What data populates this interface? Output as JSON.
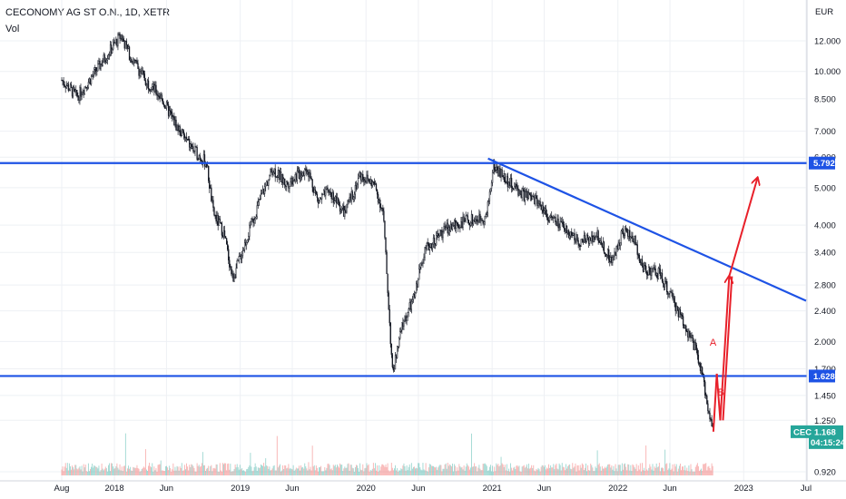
{
  "header": {
    "title": "CECONOMY AG ST O.N., 1D, XETR",
    "sub": "Vol"
  },
  "chart_data": {
    "type": "candlestick",
    "y_axis": {
      "unit": "EUR",
      "scale": "log",
      "ticks": [
        12.0,
        10.0,
        8.5,
        7.0,
        6.0,
        5.0,
        4.0,
        3.4,
        2.8,
        2.4,
        2.0,
        1.7,
        1.45,
        1.25,
        0.92
      ],
      "tick_labels": [
        "12.000",
        "10.000",
        "8.500",
        "7.000",
        "6.000",
        "5.000",
        "4.000",
        "3.400",
        "2.800",
        "2.400",
        "2.000",
        "1.700",
        "1.450",
        "1.250",
        "0.920"
      ]
    },
    "x_axis": {
      "tick_labels": [
        "Aug",
        "2018",
        "Jun",
        "2019",
        "Jun",
        "2020",
        "Jun",
        "2021",
        "Jun",
        "2022",
        "Jun",
        "2023",
        "Jul"
      ],
      "tick_dates": [
        "2017-08-01",
        "2018-01-01",
        "2018-06-01",
        "2019-01-01",
        "2019-06-01",
        "2020-01-01",
        "2020-06-01",
        "2021-01-01",
        "2021-06-01",
        "2022-01-01",
        "2022-06-01",
        "2023-01-01",
        "2023-07-01"
      ]
    },
    "price_path": [
      [
        "2017-08-01",
        9.5
      ],
      [
        "2017-09-15",
        8.6
      ],
      [
        "2017-11-01",
        9.8
      ],
      [
        "2017-12-15",
        11.2
      ],
      [
        "2018-01-20",
        12.4
      ],
      [
        "2018-02-15",
        11.0
      ],
      [
        "2018-04-01",
        9.5
      ],
      [
        "2018-05-15",
        8.6
      ],
      [
        "2018-07-01",
        7.2
      ],
      [
        "2018-08-15",
        6.3
      ],
      [
        "2018-09-25",
        5.8
      ],
      [
        "2018-10-15",
        4.3
      ],
      [
        "2018-11-15",
        3.8
      ],
      [
        "2018-12-10",
        2.9
      ],
      [
        "2019-01-15",
        3.6
      ],
      [
        "2019-03-01",
        4.7
      ],
      [
        "2019-04-05",
        5.6
      ],
      [
        "2019-05-15",
        5.1
      ],
      [
        "2019-06-15",
        5.4
      ],
      [
        "2019-07-15",
        5.6
      ],
      [
        "2019-08-15",
        4.6
      ],
      [
        "2019-09-15",
        4.9
      ],
      [
        "2019-11-01",
        4.3
      ],
      [
        "2019-12-15",
        5.4
      ],
      [
        "2020-01-25",
        5.1
      ],
      [
        "2020-02-20",
        4.3
      ],
      [
        "2020-03-18",
        1.65
      ],
      [
        "2020-04-15",
        2.2
      ],
      [
        "2020-05-20",
        2.6
      ],
      [
        "2020-06-15",
        3.4
      ],
      [
        "2020-08-15",
        3.9
      ],
      [
        "2020-10-15",
        4.1
      ],
      [
        "2020-12-15",
        4.2
      ],
      [
        "2021-01-05",
        5.7
      ],
      [
        "2021-02-15",
        5.2
      ],
      [
        "2021-04-01",
        4.8
      ],
      [
        "2021-05-15",
        4.6
      ],
      [
        "2021-06-15",
        4.2
      ],
      [
        "2021-08-01",
        3.9
      ],
      [
        "2021-09-15",
        3.6
      ],
      [
        "2021-11-01",
        3.8
      ],
      [
        "2021-12-15",
        3.2
      ],
      [
        "2022-01-15",
        3.9
      ],
      [
        "2022-02-15",
        3.7
      ],
      [
        "2022-03-15",
        3.1
      ],
      [
        "2022-05-01",
        3.0
      ],
      [
        "2022-06-15",
        2.5
      ],
      [
        "2022-07-15",
        2.2
      ],
      [
        "2022-08-15",
        1.9
      ],
      [
        "2022-09-01",
        1.65
      ],
      [
        "2022-09-20",
        1.35
      ],
      [
        "2022-10-05",
        1.168
      ]
    ],
    "horizontal_lines": [
      {
        "price": 5.792,
        "label": "5.792",
        "color": "#1e53e5"
      },
      {
        "price": 1.628,
        "label": "1.628",
        "color": "#1e53e5"
      }
    ],
    "trendline": {
      "from": [
        "2020-12-20",
        5.95
      ],
      "to": [
        "2023-07-01",
        2.55
      ],
      "color": "#1e53e5"
    },
    "last_price": {
      "symbol": "CEC",
      "value": "1.168",
      "countdown": "04:15:24",
      "color": "#26a69a"
    },
    "projection": {
      "color": "#e8202a",
      "points": [
        [
          "2022-10-05",
          1.168
        ],
        [
          "2022-10-15",
          1.65
        ],
        [
          "2022-10-25",
          1.25
        ],
        [
          "2022-11-20",
          2.95
        ],
        [
          "2023-02-10",
          5.3
        ]
      ],
      "labels": [
        {
          "text": "A",
          "at": [
            "2022-10-05",
            1.95
          ]
        },
        {
          "text": "B",
          "at": [
            "2022-10-28",
            1.45
          ]
        }
      ]
    },
    "grid": true,
    "legend": "none"
  }
}
